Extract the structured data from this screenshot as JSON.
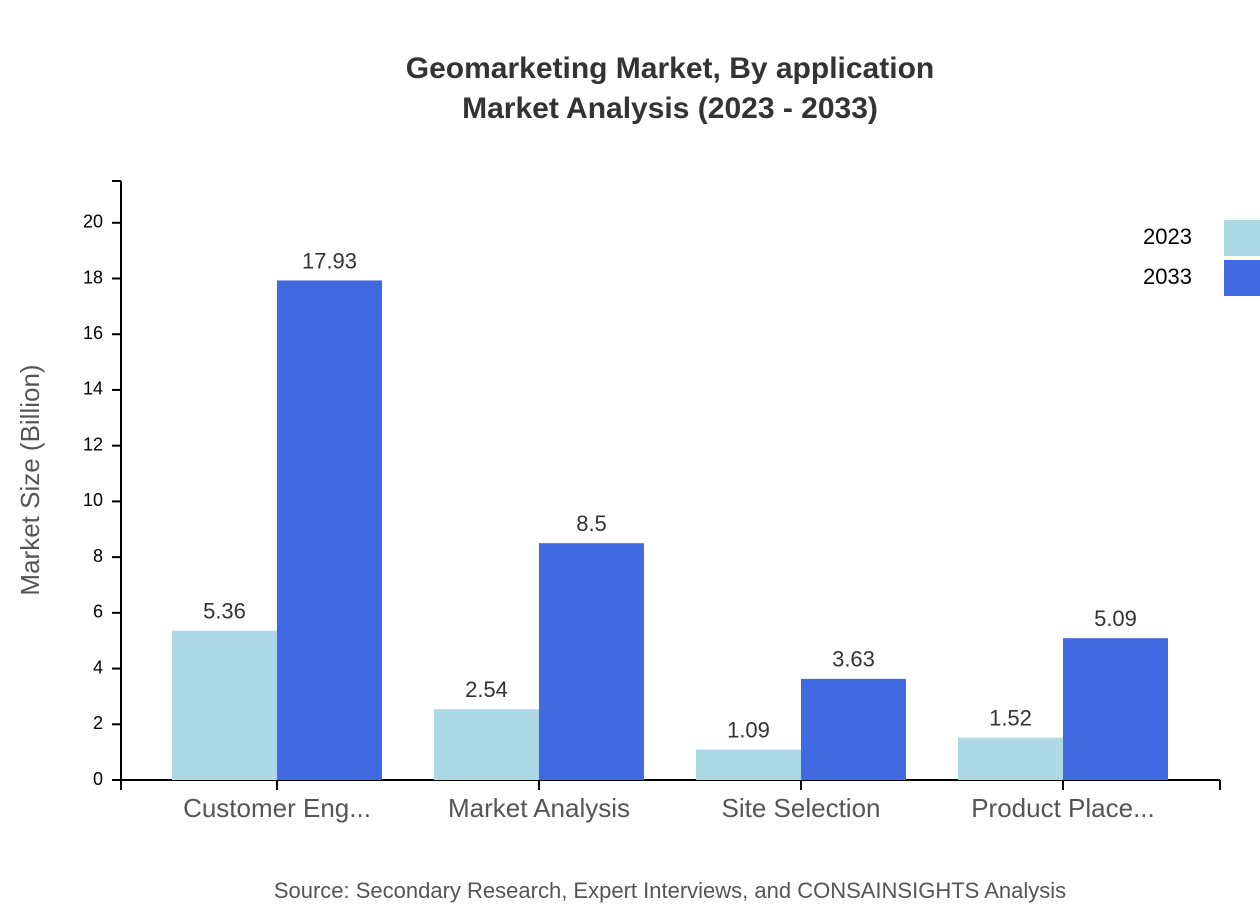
{
  "chart_data": {
    "type": "bar",
    "title": "Geomarketing Market, By application",
    "subtitle": "Market Analysis (2023 - 2033)",
    "y_label": "Market Size (Billion)",
    "source": "Source: Secondary Research, Expert Interviews, and CONSAINSIGHTS Analysis",
    "categories": [
      "Customer Eng...",
      "Market Analysis",
      "Site Selection",
      "Product Place..."
    ],
    "series": [
      {
        "name": "2023",
        "color": "#add8e6",
        "values": [
          5.36,
          2.54,
          1.09,
          1.52
        ]
      },
      {
        "name": "2033",
        "color": "#4169e1",
        "values": [
          17.93,
          8.5,
          3.63,
          5.09
        ]
      }
    ],
    "ylim": [
      0,
      21.5
    ],
    "yticks": [
      0,
      2,
      4,
      6,
      8,
      10,
      12,
      14,
      16,
      18,
      20
    ],
    "legend": "top-right"
  }
}
